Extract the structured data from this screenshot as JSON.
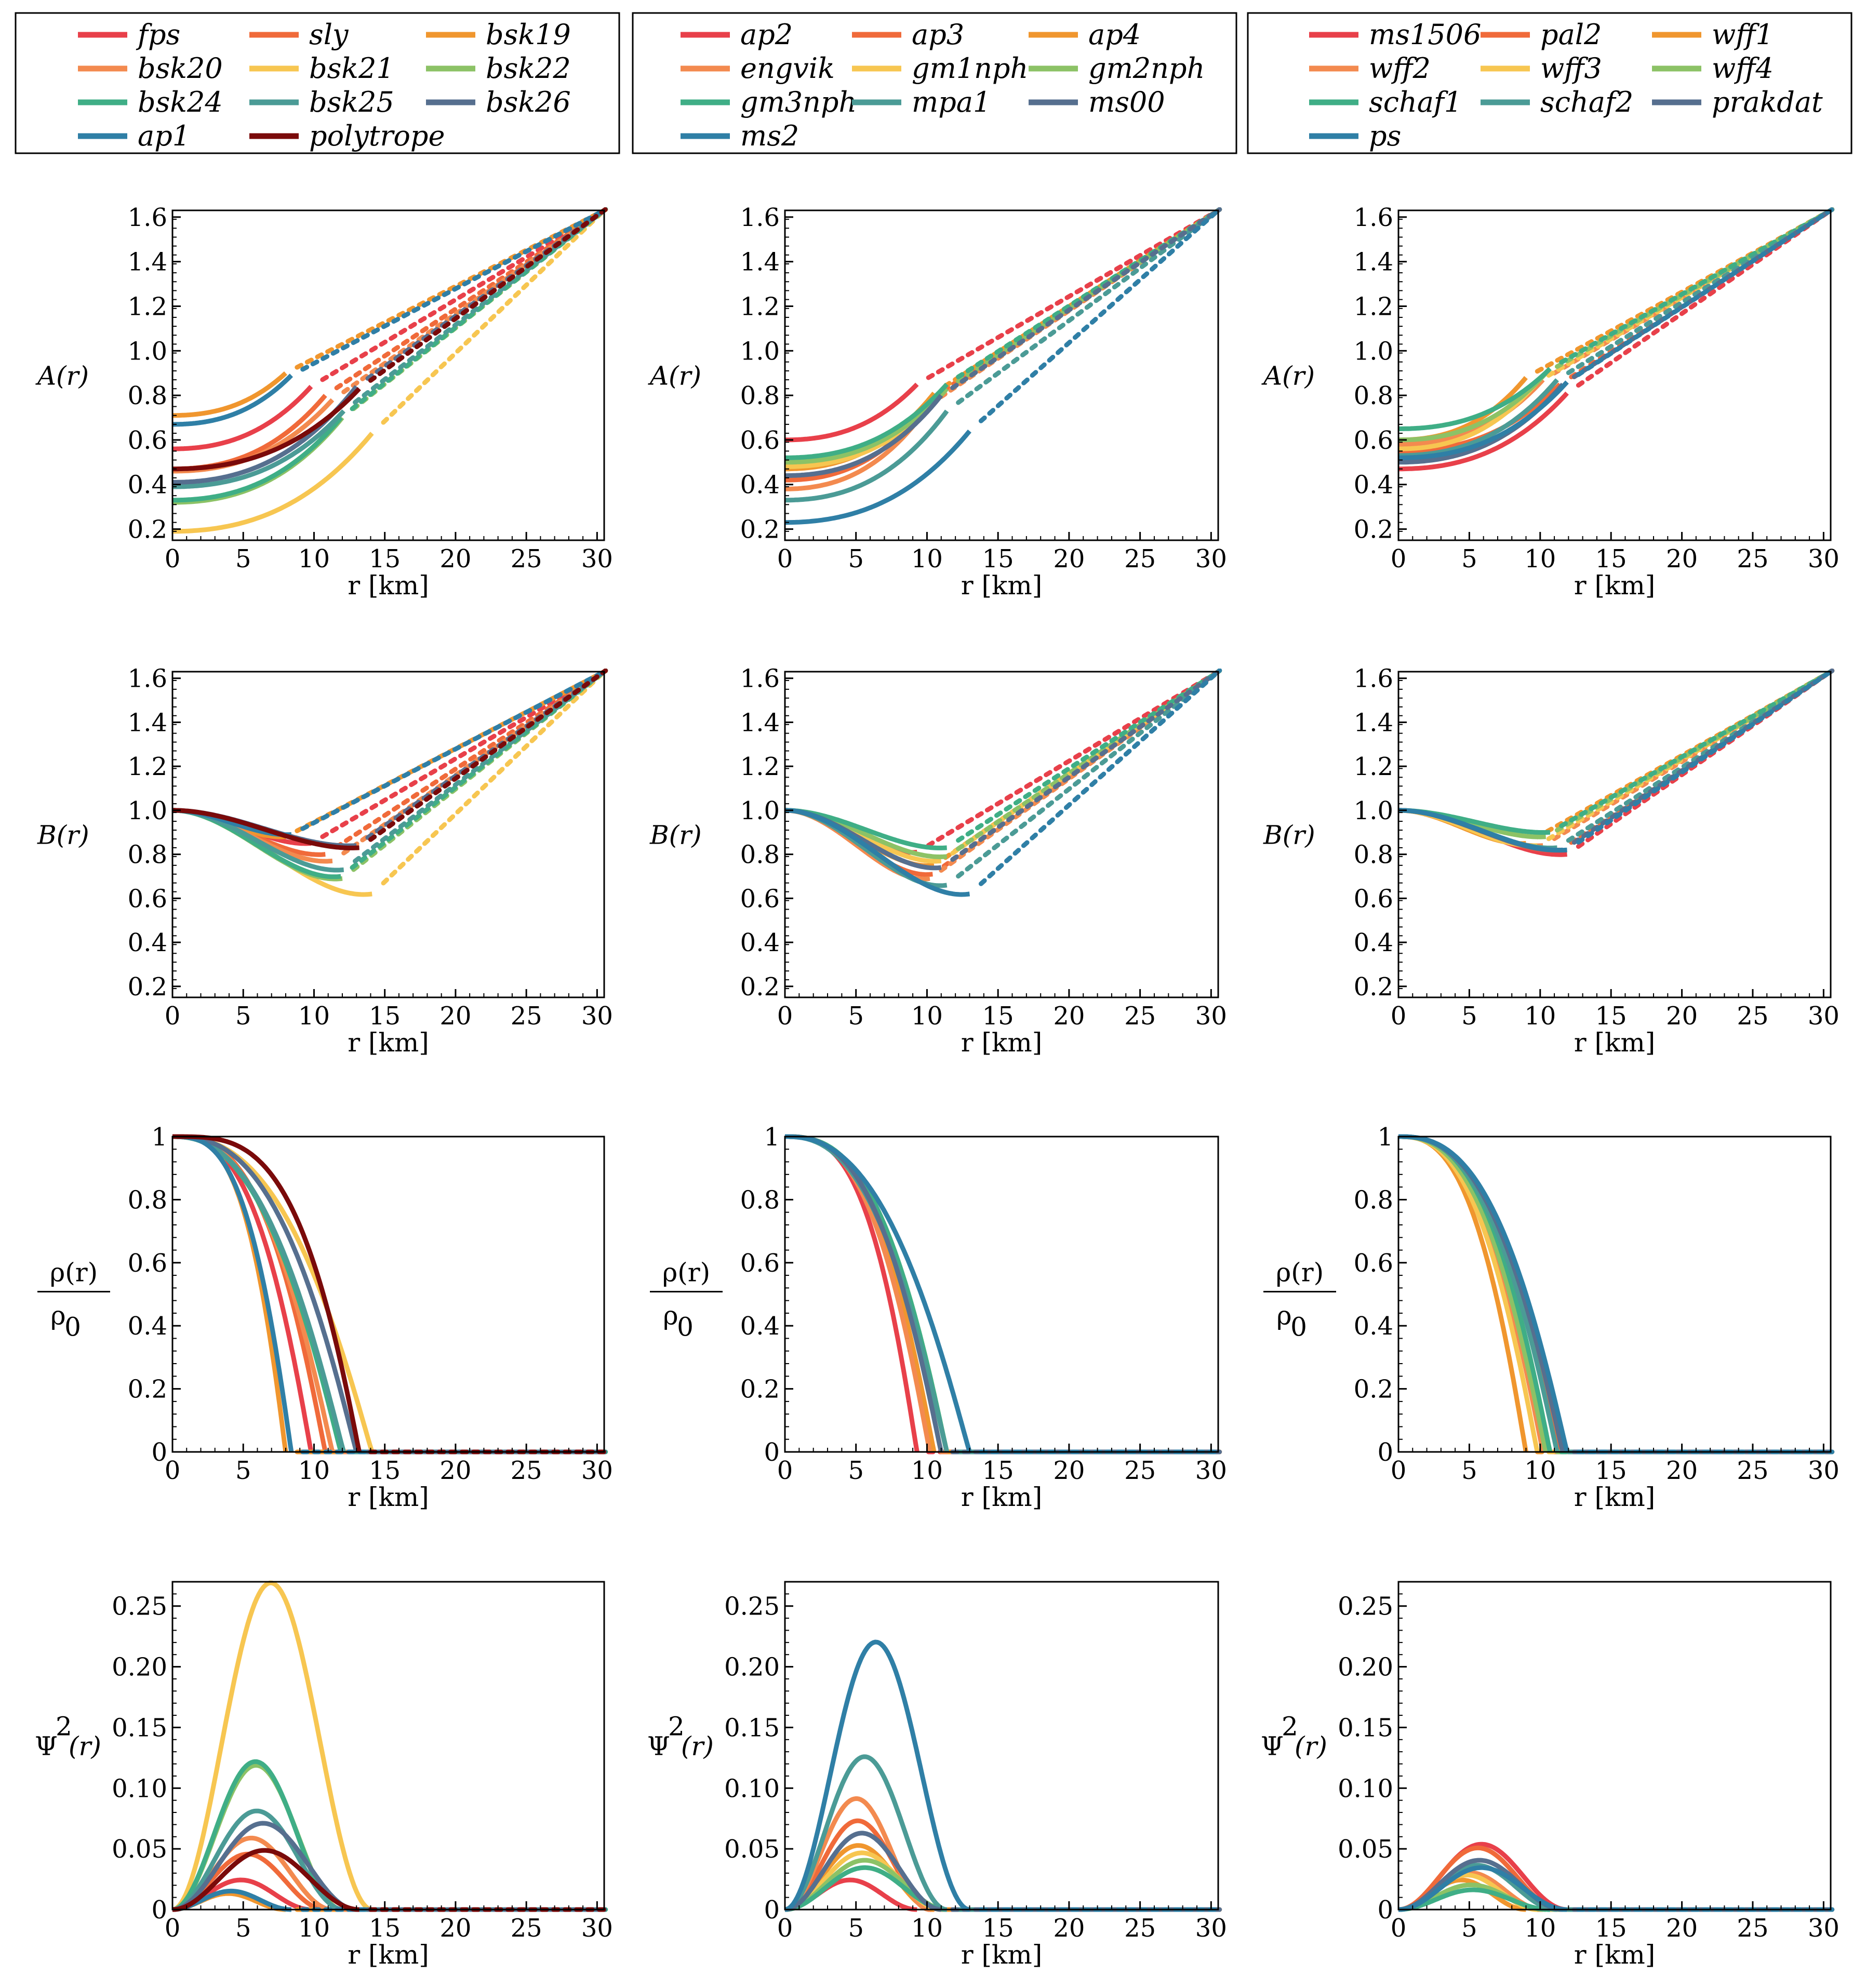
{
  "colors": {
    "fps": "#e8404a",
    "sly": "#f06a3a",
    "bsk19": "#f0962e",
    "bsk20": "#f38a4f",
    "bsk21": "#f7c651",
    "bsk22": "#8cc266",
    "bsk24": "#3fae86",
    "bsk25": "#4b9b96",
    "bsk26": "#566f8f",
    "ap1": "#2f7fa6",
    "polytrope": "#7a0a0a",
    "ap2": "#e8404a",
    "ap3": "#f06a3a",
    "ap4": "#f0962e",
    "engvik": "#f38a4f",
    "gm1nph": "#f7c651",
    "gm2nph": "#8cc266",
    "gm3nph": "#3fae86",
    "mpa1": "#4b9b96",
    "ms00": "#566f8f",
    "ms2": "#2f7fa6",
    "ms1506": "#e8404a",
    "pal2": "#f06a3a",
    "wff1": "#f0962e",
    "wff2": "#f38a4f",
    "wff3": "#f7c651",
    "wff4": "#8cc266",
    "schaf1": "#3fae86",
    "schaf2": "#4b9b96",
    "prakdat": "#566f8f",
    "ps": "#2f7fa6"
  },
  "legends": [
    {
      "entries": [
        "fps",
        "sly",
        "bsk19",
        "bsk20",
        "bsk21",
        "bsk22",
        "bsk24",
        "bsk25",
        "bsk26",
        "ap1",
        "polytrope"
      ]
    },
    {
      "entries": [
        "ap2",
        "ap3",
        "ap4",
        "engvik",
        "gm1nph",
        "gm2nph",
        "gm3nph",
        "mpa1",
        "ms00",
        "ms2"
      ]
    },
    {
      "entries": [
        "ms1506",
        "pal2",
        "wff1",
        "wff2",
        "wff3",
        "wff4",
        "schaf1",
        "schaf2",
        "prakdat",
        "ps"
      ]
    }
  ],
  "rows": [
    {
      "key": "A",
      "ylabel": "A(r)",
      "ylim": [
        0.15,
        1.63
      ],
      "yticks": [
        "0.2",
        "0.4",
        "0.6",
        "0.8",
        "1.0",
        "1.2",
        "1.4",
        "1.6"
      ],
      "ytick_values": [
        0.2,
        0.4,
        0.6,
        0.8,
        1.0,
        1.2,
        1.4,
        1.6
      ]
    },
    {
      "key": "B",
      "ylabel": "B(r)",
      "ylim": [
        0.15,
        1.63
      ],
      "yticks": [
        "0.2",
        "0.4",
        "0.6",
        "0.8",
        "1.0",
        "1.2",
        "1.4",
        "1.6"
      ],
      "ytick_values": [
        0.2,
        0.4,
        0.6,
        0.8,
        1.0,
        1.2,
        1.4,
        1.6
      ]
    },
    {
      "key": "rho",
      "ylabel_num": "ρ(r)",
      "ylabel_den": "ρ",
      "ylabel_sub": "0",
      "ylim": [
        0,
        1
      ],
      "yticks": [
        "0",
        "0.2",
        "0.4",
        "0.6",
        "0.8",
        "1"
      ],
      "ytick_values": [
        0,
        0.2,
        0.4,
        0.6,
        0.8,
        1.0
      ]
    },
    {
      "key": "psi",
      "ylabel_main": "Ψ",
      "ylabel_sup": "2",
      "ylabel_rest": "(r)",
      "ylim": [
        0,
        0.27
      ],
      "yticks": [
        "0",
        "0.05",
        "0.10",
        "0.15",
        "0.20",
        "0.25"
      ],
      "ytick_values": [
        0,
        0.05,
        0.1,
        0.15,
        0.2,
        0.25
      ]
    }
  ],
  "x_axis": {
    "xlim": [
      0,
      30.5
    ],
    "xticks": [
      "0",
      "5",
      "10",
      "15",
      "20",
      "25",
      "30"
    ],
    "xtick_values": [
      0,
      5,
      10,
      15,
      20,
      25,
      30
    ]
  },
  "xlabels": [
    [
      "r [km]",
      "r  [km]",
      "r [km]"
    ],
    [
      "r [km]",
      "r [km]",
      "r [km]"
    ],
    [
      "r [km]",
      "r [km]",
      "r [km]"
    ],
    [
      "r [km]",
      "r [km]",
      "r [km]"
    ]
  ],
  "chart_data": [
    {
      "type": "line",
      "panel": "column 1",
      "xlabel": "r [km]",
      "series": [
        {
          "name": "fps",
          "R": 9.8,
          "A0": 0.56,
          "AR": 0.84,
          "BR": 0.85,
          "psi": 0.024,
          "rhoK": 1.0
        },
        {
          "name": "sly",
          "R": 10.8,
          "A0": 0.47,
          "AR": 0.8,
          "BR": 0.8,
          "psi": 0.045,
          "rhoK": 1.0
        },
        {
          "name": "bsk19",
          "R": 8.0,
          "A0": 0.71,
          "AR": 0.9,
          "BR": 0.88,
          "psi": 0.013,
          "rhoK": 1.4
        },
        {
          "name": "bsk20",
          "R": 11.3,
          "A0": 0.46,
          "AR": 0.78,
          "BR": 0.77,
          "psi": 0.058,
          "rhoK": 0.8
        },
        {
          "name": "bsk21",
          "R": 14.1,
          "A0": 0.19,
          "AR": 0.63,
          "BR": 0.62,
          "psi": 0.265,
          "rhoK": 0.7
        },
        {
          "name": "bsk22",
          "R": 12.0,
          "A0": 0.32,
          "AR": 0.7,
          "BR": 0.69,
          "psi": 0.117,
          "rhoK": 0.6
        },
        {
          "name": "bsk24",
          "R": 11.9,
          "A0": 0.33,
          "AR": 0.7,
          "BR": 0.7,
          "psi": 0.12,
          "rhoK": 0.6
        },
        {
          "name": "bsk25",
          "R": 12.1,
          "A0": 0.39,
          "AR": 0.73,
          "BR": 0.73,
          "psi": 0.08,
          "rhoK": 0.6
        },
        {
          "name": "bsk26",
          "R": 13.0,
          "A0": 0.41,
          "AR": 0.84,
          "BR": 0.84,
          "psi": 0.07,
          "rhoK": 0.8
        },
        {
          "name": "ap1",
          "R": 8.4,
          "A0": 0.67,
          "AR": 0.89,
          "BR": 0.89,
          "psi": 0.015,
          "rhoK": 1.2
        },
        {
          "name": "polytrope",
          "R": 13.2,
          "A0": 0.47,
          "AR": 0.83,
          "BR": 0.83,
          "psi": 0.048,
          "rhoK": 1.6
        }
      ]
    },
    {
      "type": "line",
      "panel": "column 2",
      "xlabel": "r  [km]",
      "series": [
        {
          "name": "ap2",
          "R": 9.3,
          "A0": 0.6,
          "AR": 0.85,
          "BR": 0.81,
          "psi": 0.024,
          "rhoK": 1.2
        },
        {
          "name": "ap3",
          "R": 10.4,
          "A0": 0.42,
          "AR": 0.79,
          "BR": 0.71,
          "psi": 0.072,
          "rhoK": 1.0
        },
        {
          "name": "ap4",
          "R": 10.5,
          "A0": 0.47,
          "AR": 0.81,
          "BR": 0.75,
          "psi": 0.052,
          "rhoK": 1.0
        },
        {
          "name": "engvik",
          "R": 10.2,
          "A0": 0.38,
          "AR": 0.76,
          "BR": 0.69,
          "psi": 0.09,
          "rhoK": 1.0
        },
        {
          "name": "gm1nph",
          "R": 11.0,
          "A0": 0.48,
          "AR": 0.8,
          "BR": 0.77,
          "psi": 0.046,
          "rhoK": 0.9
        },
        {
          "name": "gm2nph",
          "R": 11.4,
          "A0": 0.5,
          "AR": 0.83,
          "BR": 0.79,
          "psi": 0.04,
          "rhoK": 0.9
        },
        {
          "name": "gm3nph",
          "R": 11.4,
          "A0": 0.52,
          "AR": 0.85,
          "BR": 0.83,
          "psi": 0.034,
          "rhoK": 0.9
        },
        {
          "name": "mpa1",
          "R": 11.4,
          "A0": 0.33,
          "AR": 0.73,
          "BR": 0.66,
          "psi": 0.124,
          "rhoK": 0.7
        },
        {
          "name": "ms00",
          "R": 11.0,
          "A0": 0.44,
          "AR": 0.8,
          "BR": 0.74,
          "psi": 0.062,
          "rhoK": 0.9
        },
        {
          "name": "ms2",
          "R": 13.0,
          "A0": 0.23,
          "AR": 0.64,
          "BR": 0.62,
          "psi": 0.217,
          "rhoK": 0.6
        }
      ]
    },
    {
      "type": "line",
      "panel": "column 3",
      "xlabel": "r [km]",
      "series": [
        {
          "name": "ms1506",
          "R": 11.9,
          "A0": 0.47,
          "AR": 0.81,
          "BR": 0.8,
          "psi": 0.053,
          "rhoK": 0.7
        },
        {
          "name": "pal2",
          "R": 11.4,
          "A0": 0.55,
          "AR": 0.85,
          "BR": 0.82,
          "psi": 0.05,
          "rhoK": 0.7
        },
        {
          "name": "wff1",
          "R": 9.0,
          "A0": 0.6,
          "AR": 0.88,
          "BR": 0.85,
          "psi": 0.024,
          "rhoK": 0.9
        },
        {
          "name": "wff2",
          "R": 10.2,
          "A0": 0.58,
          "AR": 0.87,
          "BR": 0.84,
          "psi": 0.03,
          "rhoK": 0.8
        },
        {
          "name": "wff3",
          "R": 9.8,
          "A0": 0.56,
          "AR": 0.86,
          "BR": 0.84,
          "psi": 0.028,
          "rhoK": 0.8
        },
        {
          "name": "wff4",
          "R": 10.4,
          "A0": 0.6,
          "AR": 0.9,
          "BR": 0.88,
          "psi": 0.02,
          "rhoK": 0.8
        },
        {
          "name": "schaf1",
          "R": 10.7,
          "A0": 0.65,
          "AR": 0.92,
          "BR": 0.9,
          "psi": 0.016,
          "rhoK": 0.9
        },
        {
          "name": "schaf2",
          "R": 11.2,
          "A0": 0.53,
          "AR": 0.87,
          "BR": 0.83,
          "psi": 0.036,
          "rhoK": 0.8
        },
        {
          "name": "prakdat",
          "R": 11.6,
          "A0": 0.5,
          "AR": 0.85,
          "BR": 0.82,
          "psi": 0.04,
          "rhoK": 0.8
        },
        {
          "name": "ps",
          "R": 11.9,
          "A0": 0.52,
          "AR": 0.86,
          "BR": 0.82,
          "psi": 0.034,
          "rhoK": 0.8
        }
      ]
    }
  ]
}
